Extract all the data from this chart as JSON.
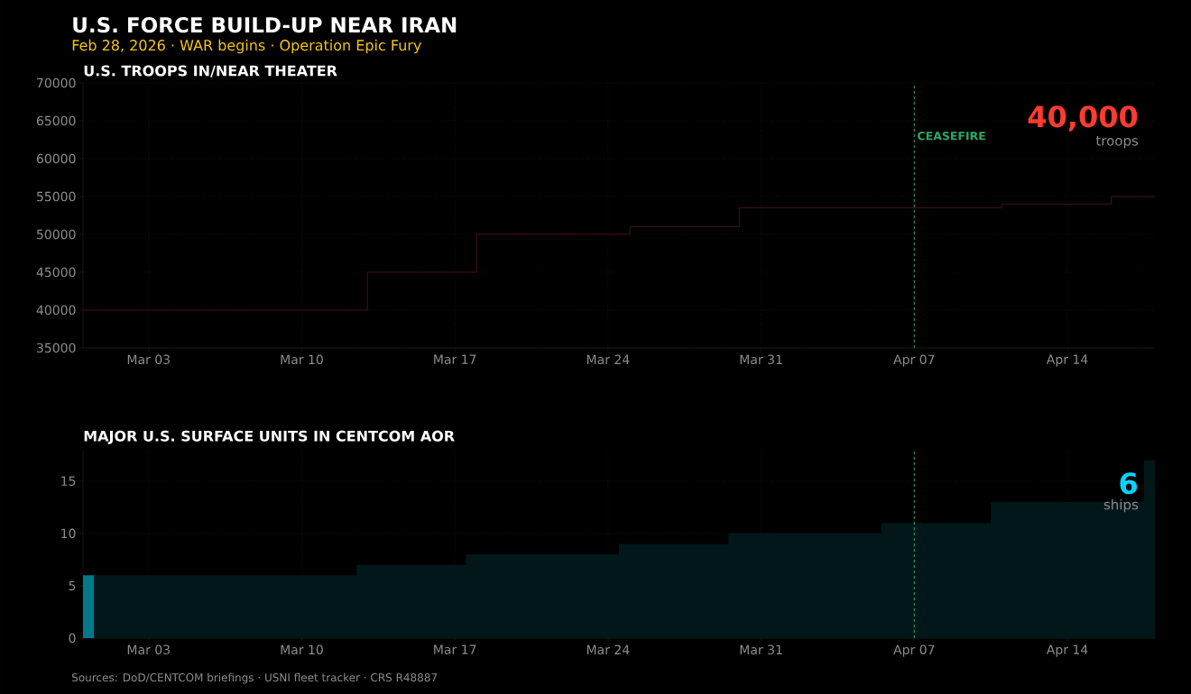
{
  "chart_data": [
    {
      "type": "other",
      "title": "U.S. FORCE BUILD-UP NEAR IRAN",
      "subtitle": "Feb 28, 2026  ·  WAR begins  ·  Operation Epic Fury",
      "annotations": [
        "Sources: DoD/CENTCOM briefings  ·  USNI fleet tracker  ·  CRS R48887"
      ]
    },
    {
      "type": "step",
      "title": "U.S. TROOPS IN/NEAR THEATER",
      "x": [
        "2026-02-28",
        "2026-03-13",
        "2026-03-18",
        "2026-03-25",
        "2026-03-30",
        "2026-04-11",
        "2026-04-16",
        "2026-04-18"
      ],
      "series": [
        {
          "color": "#4a1512",
          "values": [
            40000,
            45000,
            50000,
            51000,
            53500,
            54000,
            55000,
            55000
          ]
        }
      ],
      "xlim": [
        "2026-02-28",
        "2026-04-18"
      ],
      "xticks": [
        {
          "value": "2026-03-03",
          "label": "Mar 03"
        },
        {
          "value": "2026-03-10",
          "label": "Mar 10"
        },
        {
          "value": "2026-03-17",
          "label": "Mar 17"
        },
        {
          "value": "2026-03-24",
          "label": "Mar 24"
        },
        {
          "value": "2026-03-31",
          "label": "Mar 31"
        },
        {
          "value": "2026-04-07",
          "label": "Apr 07"
        },
        {
          "value": "2026-04-14",
          "label": "Apr 14"
        }
      ],
      "ylim": [
        35000,
        70000
      ],
      "yticks": [
        35000,
        40000,
        45000,
        50000,
        55000,
        60000,
        65000,
        70000
      ],
      "grid": true,
      "ref_lines": [
        {
          "axis": "x",
          "value": "2026-04-07",
          "label": "CEASEFIRE",
          "color": "#2ea866",
          "line_style": "dashed"
        }
      ],
      "annotations": [
        "40,000",
        "troops"
      ]
    },
    {
      "type": "bar",
      "title": "MAJOR U.S. SURFACE UNITS IN CENTCOM AOR",
      "x": [
        "2026-02-28",
        "2026-03-01",
        "2026-03-02",
        "2026-03-03",
        "2026-03-04",
        "2026-03-05",
        "2026-03-06",
        "2026-03-07",
        "2026-03-08",
        "2026-03-09",
        "2026-03-10",
        "2026-03-11",
        "2026-03-12",
        "2026-03-13",
        "2026-03-14",
        "2026-03-15",
        "2026-03-16",
        "2026-03-17",
        "2026-03-18",
        "2026-03-19",
        "2026-03-20",
        "2026-03-21",
        "2026-03-22",
        "2026-03-23",
        "2026-03-24",
        "2026-03-25",
        "2026-03-26",
        "2026-03-27",
        "2026-03-28",
        "2026-03-29",
        "2026-03-30",
        "2026-03-31",
        "2026-04-01",
        "2026-04-02",
        "2026-04-03",
        "2026-04-04",
        "2026-04-05",
        "2026-04-06",
        "2026-04-07",
        "2026-04-08",
        "2026-04-09",
        "2026-04-10",
        "2026-04-11",
        "2026-04-12",
        "2026-04-13",
        "2026-04-14",
        "2026-04-15",
        "2026-04-16",
        "2026-04-17",
        "2026-04-18"
      ],
      "series": [
        {
          "type": "area",
          "color": "#02171a",
          "values": [
            6,
            6,
            6,
            6,
            6,
            6,
            6,
            6,
            6,
            6,
            6,
            6,
            6,
            7,
            7,
            7,
            7,
            7,
            8,
            8,
            8,
            8,
            8,
            8,
            8,
            9,
            9,
            9,
            9,
            9,
            10,
            10,
            10,
            10,
            10,
            10,
            10,
            11,
            11,
            11,
            11,
            11,
            13,
            13,
            13,
            13,
            13,
            13,
            13,
            17
          ]
        },
        {
          "type": "bar",
          "color": "#007a8a",
          "x": [
            "2026-02-28"
          ],
          "values": [
            6
          ]
        }
      ],
      "xlim": [
        "2026-02-28",
        "2026-04-18"
      ],
      "xticks": [
        {
          "value": "2026-03-03",
          "label": "Mar 03"
        },
        {
          "value": "2026-03-10",
          "label": "Mar 10"
        },
        {
          "value": "2026-03-17",
          "label": "Mar 17"
        },
        {
          "value": "2026-03-24",
          "label": "Mar 24"
        },
        {
          "value": "2026-03-31",
          "label": "Mar 31"
        },
        {
          "value": "2026-04-07",
          "label": "Apr 07"
        },
        {
          "value": "2026-04-14",
          "label": "Apr 14"
        }
      ],
      "ylim": [
        0,
        18
      ],
      "yticks": [
        0,
        5,
        10,
        15
      ],
      "grid": true,
      "ref_lines": [
        {
          "axis": "x",
          "value": "2026-04-07",
          "color": "#2ea866",
          "line_style": "dashed"
        }
      ],
      "annotations": [
        "6",
        "ships"
      ]
    }
  ]
}
